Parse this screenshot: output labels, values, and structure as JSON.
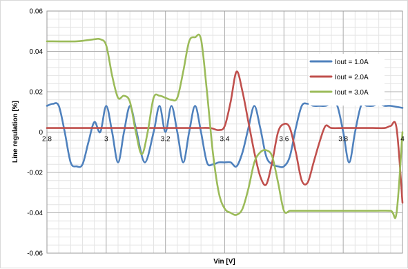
{
  "chart_data": {
    "type": "line",
    "title": "",
    "xlabel": "Vin [V]",
    "ylabel": "Line regulation [%]",
    "xlim": [
      2.8,
      4.0
    ],
    "ylim": [
      -0.06,
      0.06
    ],
    "x_ticks": [
      2.8,
      3.0,
      3.2,
      3.4,
      3.6,
      3.8,
      4.0
    ],
    "x_tick_labels": [
      "2.8",
      "3",
      "3.2",
      "3.4",
      "3.6",
      "3.8",
      "4"
    ],
    "y_ticks": [
      -0.06,
      -0.04,
      -0.02,
      0,
      0.02,
      0.04,
      0.06
    ],
    "y_tick_labels": [
      "-0.06",
      "-0.04",
      "-0.02",
      "0",
      "0.02",
      "0.04",
      "0.06"
    ],
    "grid": true,
    "minor_grid": true,
    "legend_position": "right",
    "series": [
      {
        "name": "Iout = 1.0A",
        "color": "#4f81bd",
        "points": [
          [
            2.8,
            0.013
          ],
          [
            2.82,
            0.014
          ],
          [
            2.84,
            0.013
          ],
          [
            2.86,
            0.0
          ],
          [
            2.88,
            -0.015
          ],
          [
            2.9,
            -0.017
          ],
          [
            2.92,
            -0.016
          ],
          [
            2.94,
            -0.005
          ],
          [
            2.96,
            0.005
          ],
          [
            2.98,
            0.0
          ],
          [
            3.0,
            0.013
          ],
          [
            3.02,
            0.0
          ],
          [
            3.04,
            -0.015
          ],
          [
            3.06,
            0.0
          ],
          [
            3.08,
            0.013
          ],
          [
            3.1,
            0.002
          ],
          [
            3.13,
            -0.015
          ],
          [
            3.16,
            0.0
          ],
          [
            3.18,
            0.013
          ],
          [
            3.2,
            0.0
          ],
          [
            3.22,
            0.013
          ],
          [
            3.24,
            0.0
          ],
          [
            3.26,
            -0.015
          ],
          [
            3.28,
            0.0
          ],
          [
            3.3,
            0.013
          ],
          [
            3.32,
            0.0
          ],
          [
            3.34,
            -0.015
          ],
          [
            3.36,
            -0.016
          ],
          [
            3.38,
            -0.015
          ],
          [
            3.4,
            -0.015
          ],
          [
            3.42,
            -0.015
          ],
          [
            3.44,
            -0.017
          ],
          [
            3.46,
            -0.01
          ],
          [
            3.48,
            0.002
          ],
          [
            3.5,
            0.013
          ],
          [
            3.52,
            0.002
          ],
          [
            3.54,
            -0.012
          ],
          [
            3.56,
            -0.016
          ],
          [
            3.58,
            -0.017
          ],
          [
            3.6,
            -0.017
          ],
          [
            3.62,
            -0.012
          ],
          [
            3.64,
            0.002
          ],
          [
            3.66,
            0.013
          ],
          [
            3.68,
            0.014
          ],
          [
            3.7,
            0.013
          ],
          [
            3.72,
            0.013
          ],
          [
            3.74,
            0.013
          ],
          [
            3.76,
            0.014
          ],
          [
            3.78,
            0.013
          ],
          [
            3.8,
            0.0
          ],
          [
            3.82,
            -0.015
          ],
          [
            3.84,
            0.0
          ],
          [
            3.86,
            0.013
          ],
          [
            3.88,
            0.013
          ],
          [
            3.9,
            0.013
          ],
          [
            3.92,
            0.014
          ],
          [
            3.94,
            0.013
          ],
          [
            3.96,
            0.013
          ],
          [
            4.0,
            0.012
          ]
        ]
      },
      {
        "name": "Iout = 2.0A",
        "color": "#c0504d",
        "points": [
          [
            2.8,
            0.002
          ],
          [
            2.9,
            0.002
          ],
          [
            3.0,
            0.002
          ],
          [
            3.1,
            0.002
          ],
          [
            3.2,
            0.002
          ],
          [
            3.3,
            0.002
          ],
          [
            3.35,
            0.002
          ],
          [
            3.38,
            0.001
          ],
          [
            3.4,
            0.003
          ],
          [
            3.42,
            0.015
          ],
          [
            3.44,
            0.03
          ],
          [
            3.46,
            0.02
          ],
          [
            3.48,
            0.005
          ],
          [
            3.5,
            -0.01
          ],
          [
            3.52,
            -0.022
          ],
          [
            3.54,
            -0.026
          ],
          [
            3.56,
            -0.015
          ],
          [
            3.58,
            0.0
          ],
          [
            3.6,
            0.004
          ],
          [
            3.62,
            0.002
          ],
          [
            3.64,
            -0.01
          ],
          [
            3.66,
            -0.024
          ],
          [
            3.68,
            -0.025
          ],
          [
            3.7,
            -0.015
          ],
          [
            3.72,
            -0.005
          ],
          [
            3.74,
            0.003
          ],
          [
            3.76,
            0.002
          ],
          [
            3.8,
            0.002
          ],
          [
            3.85,
            0.002
          ],
          [
            3.9,
            0.002
          ],
          [
            3.94,
            0.002
          ],
          [
            3.96,
            0.003
          ],
          [
            3.98,
            0.002
          ],
          [
            4.0,
            -0.035
          ]
        ]
      },
      {
        "name": "Iout = 3.0A",
        "color": "#9bbb59",
        "points": [
          [
            2.8,
            0.045
          ],
          [
            2.9,
            0.045
          ],
          [
            2.96,
            0.046
          ],
          [
            2.98,
            0.046
          ],
          [
            3.0,
            0.043
          ],
          [
            3.02,
            0.028
          ],
          [
            3.04,
            0.017
          ],
          [
            3.06,
            0.018
          ],
          [
            3.08,
            0.015
          ],
          [
            3.1,
            0.0
          ],
          [
            3.12,
            -0.011
          ],
          [
            3.14,
            0.0
          ],
          [
            3.16,
            0.017
          ],
          [
            3.18,
            0.018
          ],
          [
            3.2,
            0.017
          ],
          [
            3.22,
            0.016
          ],
          [
            3.24,
            0.017
          ],
          [
            3.26,
            0.03
          ],
          [
            3.28,
            0.045
          ],
          [
            3.3,
            0.047
          ],
          [
            3.32,
            0.046
          ],
          [
            3.34,
            0.02
          ],
          [
            3.36,
            -0.01
          ],
          [
            3.38,
            -0.03
          ],
          [
            3.4,
            -0.038
          ],
          [
            3.42,
            -0.04
          ],
          [
            3.44,
            -0.041
          ],
          [
            3.46,
            -0.038
          ],
          [
            3.48,
            -0.028
          ],
          [
            3.5,
            -0.015
          ],
          [
            3.52,
            -0.01
          ],
          [
            3.54,
            -0.009
          ],
          [
            3.56,
            -0.012
          ],
          [
            3.58,
            -0.025
          ],
          [
            3.6,
            -0.039
          ],
          [
            3.62,
            -0.039
          ],
          [
            3.64,
            -0.039
          ],
          [
            3.7,
            -0.039
          ],
          [
            3.8,
            -0.039
          ],
          [
            3.9,
            -0.039
          ],
          [
            3.96,
            -0.039
          ],
          [
            3.98,
            -0.04
          ],
          [
            4.0,
            0.0
          ]
        ]
      }
    ]
  }
}
